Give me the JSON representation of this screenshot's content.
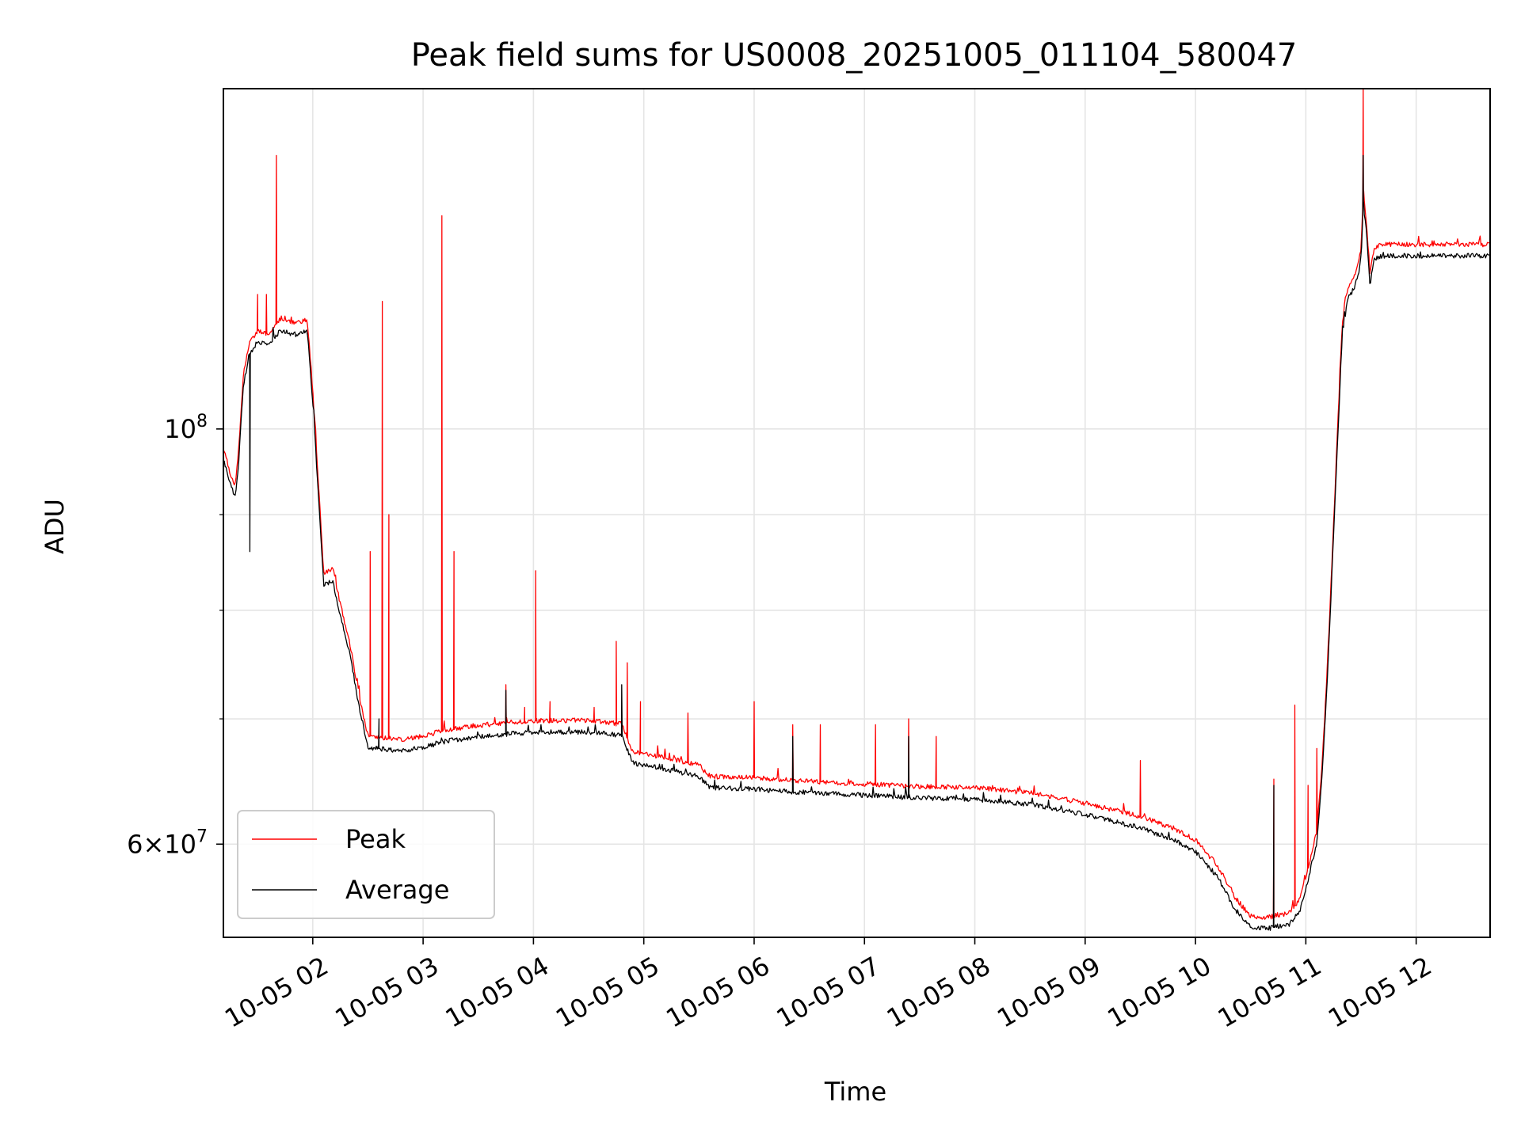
{
  "chart_data": {
    "type": "line",
    "title": "Peak field sums for US0008_20251005_011104_580047",
    "xlabel": "Time",
    "ylabel": "ADU",
    "yscale": "log",
    "grid": true,
    "legend_position": "lower-left",
    "xlim": [
      1.19,
      12.67
    ],
    "ylim": [
      53500000,
      152000000
    ],
    "x_ticks": [
      {
        "value": 2,
        "label": "10-05 02"
      },
      {
        "value": 3,
        "label": "10-05 03"
      },
      {
        "value": 4,
        "label": "10-05 04"
      },
      {
        "value": 5,
        "label": "10-05 05"
      },
      {
        "value": 6,
        "label": "10-05 06"
      },
      {
        "value": 7,
        "label": "10-05 07"
      },
      {
        "value": 8,
        "label": "10-05 08"
      },
      {
        "value": 9,
        "label": "10-05 09"
      },
      {
        "value": 10,
        "label": "10-05 10"
      },
      {
        "value": 11,
        "label": "10-05 11"
      },
      {
        "value": 12,
        "label": "10-05 12"
      }
    ],
    "y_ticks_major": [
      {
        "value": 100000000,
        "base": "10",
        "exp": "8",
        "mant": ""
      },
      {
        "value": 60000000,
        "base": "10",
        "exp": "7",
        "mant": "6"
      }
    ],
    "y_ticks_minor": [
      70000000,
      80000000,
      90000000
    ],
    "baseline": [
      [
        1.19,
        97000000
      ],
      [
        1.25,
        94000000
      ],
      [
        1.3,
        92500000
      ],
      [
        1.33,
        97000000
      ],
      [
        1.37,
        106000000
      ],
      [
        1.42,
        110000000
      ],
      [
        1.5,
        112000000
      ],
      [
        1.6,
        111500000
      ],
      [
        1.7,
        113500000
      ],
      [
        1.85,
        113000000
      ],
      [
        1.95,
        113500000
      ],
      [
        2.0,
        104000000
      ],
      [
        2.05,
        93000000
      ],
      [
        2.1,
        83000000
      ],
      [
        2.18,
        83500000
      ],
      [
        2.25,
        80000000
      ],
      [
        2.33,
        76500000
      ],
      [
        2.42,
        71500000
      ],
      [
        2.5,
        68000000
      ],
      [
        2.6,
        67900000
      ],
      [
        2.8,
        67700000
      ],
      [
        3.0,
        68000000
      ],
      [
        3.2,
        68500000
      ],
      [
        3.5,
        68900000
      ],
      [
        4.0,
        69300000
      ],
      [
        4.5,
        69300000
      ],
      [
        4.8,
        69000000
      ],
      [
        4.9,
        66700000
      ],
      [
        5.2,
        66200000
      ],
      [
        5.5,
        65600000
      ],
      [
        5.6,
        64700000
      ],
      [
        6.0,
        64600000
      ],
      [
        6.5,
        64300000
      ],
      [
        7.0,
        64100000
      ],
      [
        7.5,
        63900000
      ],
      [
        8.0,
        63800000
      ],
      [
        8.5,
        63400000
      ],
      [
        9.0,
        62600000
      ],
      [
        9.5,
        61600000
      ],
      [
        9.8,
        60700000
      ],
      [
        10.0,
        59800000
      ],
      [
        10.2,
        58000000
      ],
      [
        10.35,
        55800000
      ],
      [
        10.5,
        54500000
      ],
      [
        10.65,
        54400000
      ],
      [
        10.85,
        54700000
      ],
      [
        10.95,
        55700000
      ],
      [
        11.02,
        57800000
      ],
      [
        11.1,
        60500000
      ],
      [
        11.15,
        66000000
      ],
      [
        11.2,
        75000000
      ],
      [
        11.25,
        88000000
      ],
      [
        11.3,
        103000000
      ],
      [
        11.33,
        113000000
      ],
      [
        11.38,
        118000000
      ],
      [
        11.45,
        120000000
      ],
      [
        11.5,
        123500000
      ],
      [
        11.52,
        133000000
      ],
      [
        11.55,
        128000000
      ],
      [
        11.58,
        120000000
      ],
      [
        11.62,
        124000000
      ],
      [
        11.7,
        124500000
      ]
    ],
    "series": [
      {
        "name": "Peak",
        "color": "#ff0000",
        "offset": 1.008,
        "spikes": [
          [
            1.67,
            140000000
          ],
          [
            1.58,
            118000000
          ],
          [
            1.5,
            118000000
          ],
          [
            2.52,
            86000000
          ],
          [
            2.63,
            117000000
          ],
          [
            2.69,
            90000000
          ],
          [
            3.17,
            130000000
          ],
          [
            3.28,
            86000000
          ],
          [
            3.75,
            73000000
          ],
          [
            4.02,
            84000000
          ],
          [
            3.92,
            71000000
          ],
          [
            4.15,
            71500000
          ],
          [
            4.55,
            71000000
          ],
          [
            4.75,
            77000000
          ],
          [
            4.85,
            75000000
          ],
          [
            4.97,
            71500000
          ],
          [
            5.4,
            70500000
          ],
          [
            6.0,
            71500000
          ],
          [
            6.35,
            69500000
          ],
          [
            6.6,
            69500000
          ],
          [
            7.1,
            69500000
          ],
          [
            7.4,
            70000000
          ],
          [
            7.65,
            68500000
          ],
          [
            9.5,
            66500000
          ],
          [
            10.71,
            65000000
          ],
          [
            10.9,
            71200000
          ],
          [
            11.02,
            64500000
          ],
          [
            11.1,
            67500000
          ],
          [
            11.52,
            152000000
          ]
        ]
      },
      {
        "name": "Average",
        "color": "#000000",
        "offset": 0.994,
        "spikes": [
          [
            1.43,
            86000000
          ],
          [
            2.6,
            70000000
          ],
          [
            3.75,
            72500000
          ],
          [
            4.8,
            73000000
          ],
          [
            6.35,
            68500000
          ],
          [
            7.4,
            68500000
          ],
          [
            10.71,
            64500000
          ],
          [
            11.52,
            140000000
          ]
        ]
      }
    ]
  }
}
